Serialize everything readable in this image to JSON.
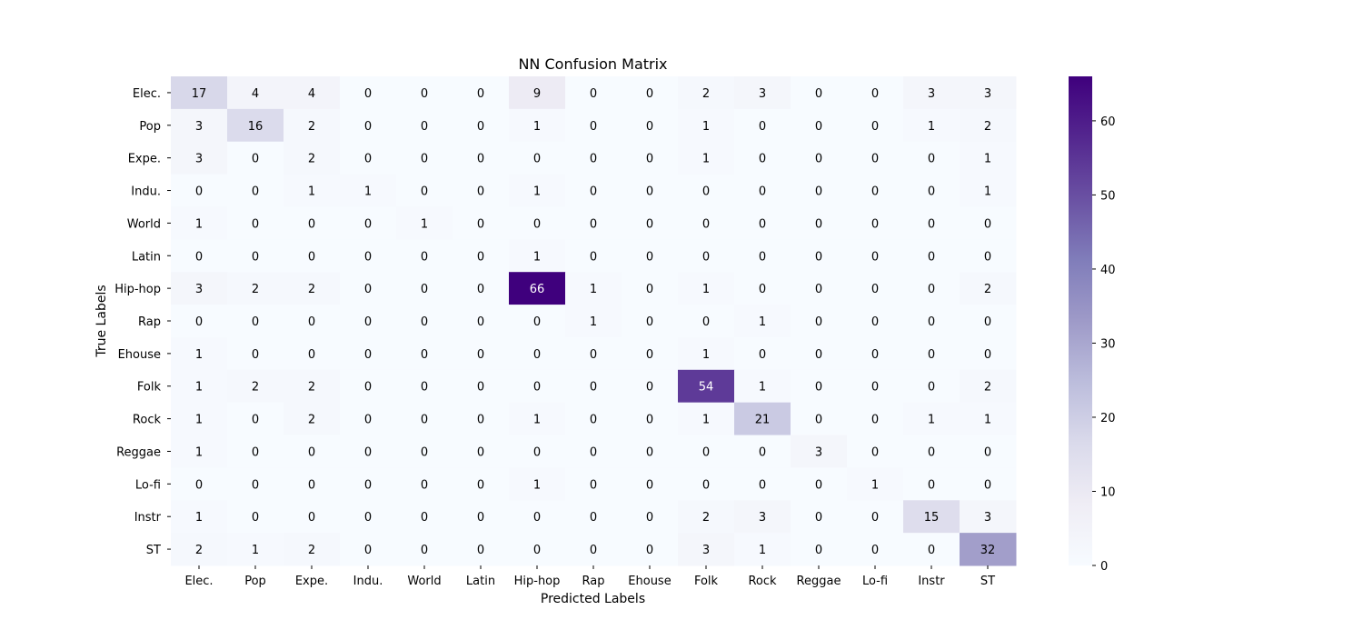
{
  "chart_data": {
    "type": "heatmap",
    "title": "NN Confusion Matrix",
    "xlabel": "Predicted Labels",
    "ylabel": "True Labels",
    "x_categories": [
      "Elec.",
      "Pop",
      "Expe.",
      "Indu.",
      "World",
      "Latin",
      "Hip-hop",
      "Rap",
      "Ehouse",
      "Folk",
      "Rock",
      "Reggae",
      "Lo-fi",
      "Instr",
      "ST"
    ],
    "y_categories": [
      "Elec.",
      "Pop",
      "Expe.",
      "Indu.",
      "World",
      "Latin",
      "Hip-hop",
      "Rap",
      "Ehouse",
      "Folk",
      "Rock",
      "Reggae",
      "Lo-fi",
      "Instr",
      "ST"
    ],
    "values": [
      [
        17,
        4,
        4,
        0,
        0,
        0,
        9,
        0,
        0,
        2,
        3,
        0,
        0,
        3,
        3
      ],
      [
        3,
        16,
        2,
        0,
        0,
        0,
        1,
        0,
        0,
        1,
        0,
        0,
        0,
        1,
        2
      ],
      [
        3,
        0,
        2,
        0,
        0,
        0,
        0,
        0,
        0,
        1,
        0,
        0,
        0,
        0,
        1
      ],
      [
        0,
        0,
        1,
        1,
        0,
        0,
        1,
        0,
        0,
        0,
        0,
        0,
        0,
        0,
        1
      ],
      [
        1,
        0,
        0,
        0,
        1,
        0,
        0,
        0,
        0,
        0,
        0,
        0,
        0,
        0,
        0
      ],
      [
        0,
        0,
        0,
        0,
        0,
        0,
        1,
        0,
        0,
        0,
        0,
        0,
        0,
        0,
        0
      ],
      [
        3,
        2,
        2,
        0,
        0,
        0,
        66,
        1,
        0,
        1,
        0,
        0,
        0,
        0,
        2
      ],
      [
        0,
        0,
        0,
        0,
        0,
        0,
        0,
        1,
        0,
        0,
        1,
        0,
        0,
        0,
        0
      ],
      [
        1,
        0,
        0,
        0,
        0,
        0,
        0,
        0,
        0,
        1,
        0,
        0,
        0,
        0,
        0
      ],
      [
        1,
        2,
        2,
        0,
        0,
        0,
        0,
        0,
        0,
        54,
        1,
        0,
        0,
        0,
        2
      ],
      [
        1,
        0,
        2,
        0,
        0,
        0,
        1,
        0,
        0,
        1,
        21,
        0,
        0,
        1,
        1
      ],
      [
        1,
        0,
        0,
        0,
        0,
        0,
        0,
        0,
        0,
        0,
        0,
        3,
        0,
        0,
        0
      ],
      [
        0,
        0,
        0,
        0,
        0,
        0,
        1,
        0,
        0,
        0,
        0,
        0,
        1,
        0,
        0
      ],
      [
        1,
        0,
        0,
        0,
        0,
        0,
        0,
        0,
        0,
        2,
        3,
        0,
        0,
        15,
        3
      ],
      [
        2,
        1,
        2,
        0,
        0,
        0,
        0,
        0,
        0,
        3,
        1,
        0,
        0,
        0,
        32
      ]
    ],
    "value_range": [
      0,
      66
    ],
    "colormap": "Purples",
    "colorbar_ticks": [
      0,
      10,
      20,
      30,
      40,
      50,
      60
    ],
    "grid": false
  }
}
